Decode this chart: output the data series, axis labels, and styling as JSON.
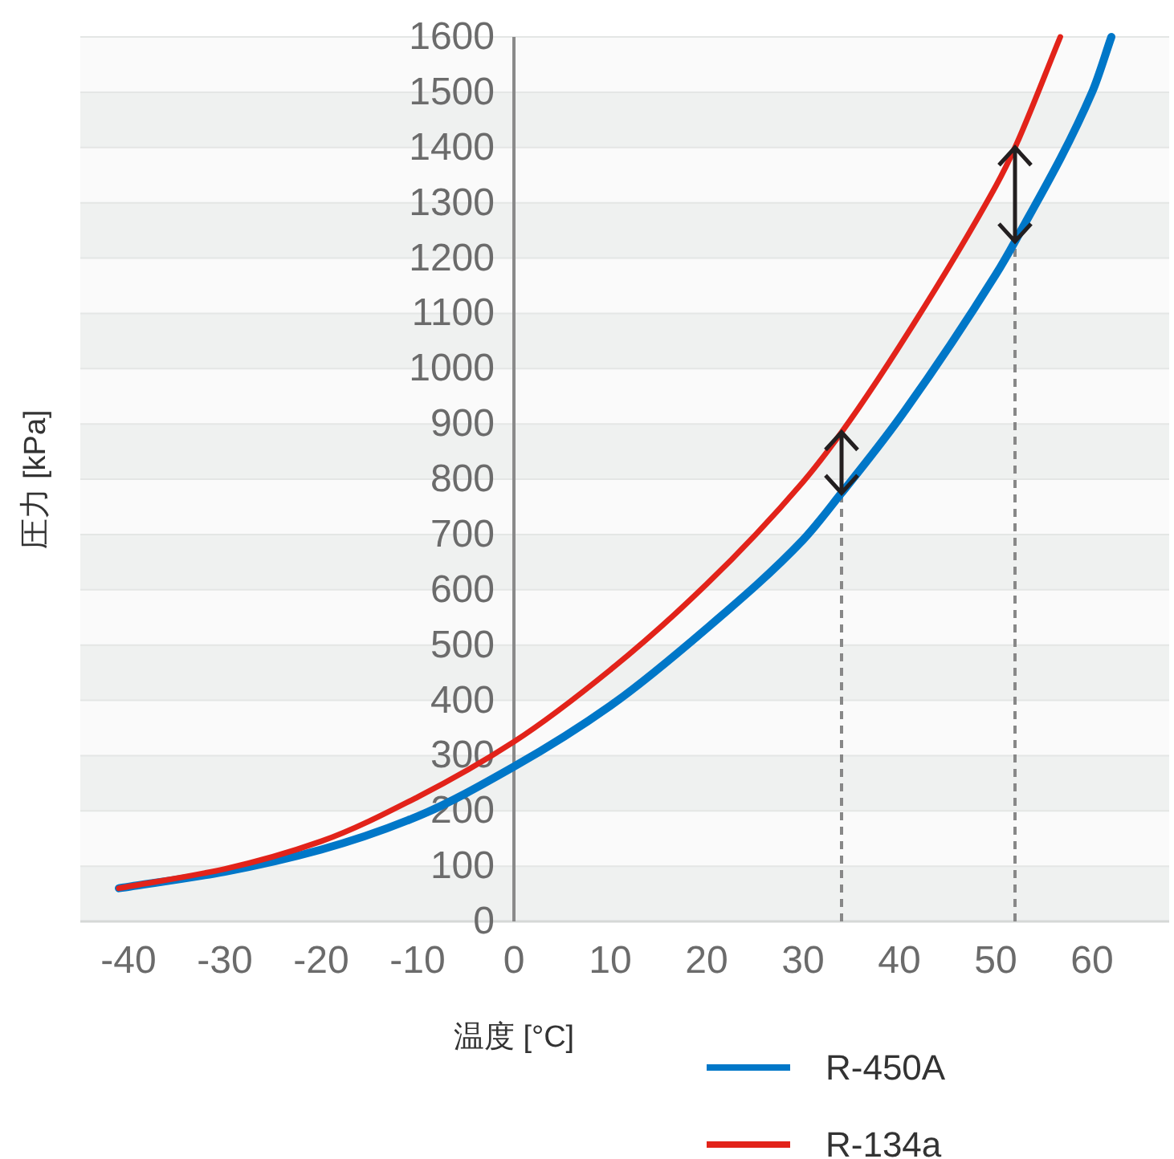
{
  "chart_data": {
    "type": "line",
    "xlabel": "温度 [°C]",
    "ylabel": "圧力 [kPa]",
    "xlim": [
      -45,
      68
    ],
    "ylim": [
      0,
      1600
    ],
    "xticks": [
      -40,
      -30,
      -20,
      -10,
      0,
      10,
      20,
      30,
      40,
      50,
      60
    ],
    "yticks": [
      0,
      100,
      200,
      300,
      400,
      500,
      600,
      700,
      800,
      900,
      1000,
      1100,
      1200,
      1300,
      1400,
      1500,
      1600
    ],
    "grid": "y",
    "legend": "bottom right",
    "marker": "none",
    "line_style": "solid",
    "ref_lines": [
      {
        "axis": "x",
        "value": 34,
        "color": "#888888",
        "line_style": "dashed"
      },
      {
        "axis": "x",
        "value": 52,
        "color": "#888888",
        "line_style": "dashed"
      }
    ],
    "series": [
      {
        "name": "R-450A",
        "color": "#0077c8",
        "x": [
          -41,
          -30,
          -20,
          -10,
          0,
          10,
          20,
          30,
          34,
          40,
          50,
          52,
          60,
          62
        ],
        "values": [
          60,
          90,
          130,
          190,
          280,
          390,
          530,
          690,
          775,
          910,
          1170,
          1230,
          1500,
          1600
        ]
      },
      {
        "name": "R-134a",
        "color": "#e2231a",
        "x": [
          -41,
          -30,
          -20,
          -10,
          0,
          10,
          20,
          30,
          34,
          40,
          50,
          52,
          56.7
        ],
        "values": [
          60,
          95,
          145,
          225,
          325,
          455,
          610,
          795,
          885,
          1040,
          1330,
          1400,
          1600
        ]
      }
    ]
  }
}
